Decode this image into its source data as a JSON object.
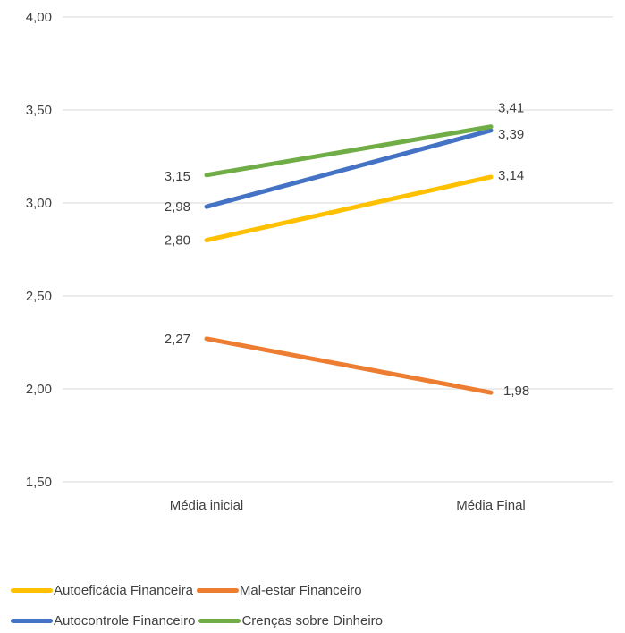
{
  "chart_data": {
    "type": "line",
    "title": "",
    "xlabel": "",
    "ylabel": "",
    "categories": [
      "Média inicial",
      "Média Final"
    ],
    "ylim": [
      1.5,
      4.0
    ],
    "yticks": [
      "1,50",
      "2,00",
      "2,50",
      "3,00",
      "3,50",
      "4,00"
    ],
    "grid": true,
    "legend_position": "bottom-left",
    "series": [
      {
        "name": "Autoeficácia Financeira",
        "values": [
          2.8,
          3.14
        ],
        "labels": [
          "2,80",
          "3,14"
        ],
        "color": "#FFC000"
      },
      {
        "name": "Mal-estar Financeiro",
        "values": [
          2.27,
          1.98
        ],
        "labels": [
          "2,27",
          "1,98"
        ],
        "color": "#ED7D31"
      },
      {
        "name": "Autocontrole Financeiro",
        "values": [
          2.98,
          3.39
        ],
        "labels": [
          "2,98",
          "3,39"
        ],
        "color": "#4472C4"
      },
      {
        "name": "Crenças sobre Dinheiro",
        "values": [
          3.15,
          3.41
        ],
        "labels": [
          "3,15",
          "3,41"
        ],
        "color": "#70AD47"
      }
    ]
  }
}
